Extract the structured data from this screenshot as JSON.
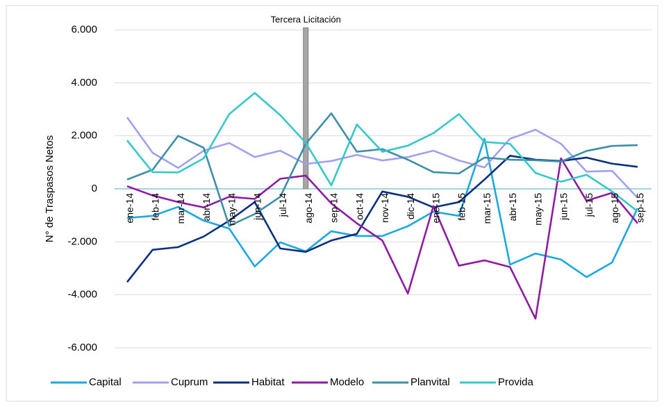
{
  "chart_data": {
    "type": "line",
    "annotation": "Tercera Licitación",
    "y_label": "N° de Traspasos Netos",
    "categories": [
      "ene-14",
      "feb-14",
      "mar-14",
      "abr-14",
      "may-14",
      "jun-14",
      "jul-14",
      "ago-14",
      "sep-14",
      "oct-14",
      "nov-14",
      "dic-14",
      "ene-15",
      "feb-15",
      "mar-15",
      "abr-15",
      "may-15",
      "jun-15",
      "jul-15",
      "ago-15",
      "sep-15"
    ],
    "series": [
      {
        "name": "Capital",
        "color": "#1ba7e0",
        "values": [
          -1100,
          -1020,
          -680,
          -1200,
          -1500,
          -2930,
          -2020,
          -2360,
          -1600,
          -1780,
          -1780,
          -1410,
          -860,
          -1020,
          1890,
          -2860,
          -2440,
          -2670,
          -3330,
          -2780,
          -730
        ]
      },
      {
        "name": "Cuprum",
        "color": "#a0a0f0",
        "values": [
          2700,
          1360,
          790,
          1440,
          1730,
          1200,
          1440,
          940,
          1050,
          1280,
          1070,
          1200,
          1440,
          1070,
          810,
          1890,
          2230,
          1700,
          650,
          680,
          -340
        ]
      },
      {
        "name": "Habitat",
        "color": "#0b2f7f",
        "values": [
          -3520,
          -2300,
          -2200,
          -1800,
          -1200,
          -500,
          -2250,
          -2380,
          -1950,
          -1700,
          -100,
          -300,
          -700,
          -500,
          350,
          1250,
          1100,
          1050,
          1180,
          950,
          830
        ]
      },
      {
        "name": "Modelo",
        "color": "#8e1aa3",
        "values": [
          100,
          -250,
          -500,
          -700,
          -300,
          -380,
          380,
          500,
          -550,
          -1300,
          -1950,
          -3950,
          -650,
          -2900,
          -2700,
          -2950,
          -4900,
          1150,
          -450,
          -150,
          -1300
        ]
      },
      {
        "name": "Planvital",
        "color": "#3d8ea6",
        "values": [
          350,
          720,
          2000,
          1550,
          -1400,
          -950,
          -300,
          1700,
          2850,
          1400,
          1500,
          1100,
          630,
          580,
          1180,
          1100,
          1080,
          1030,
          1430,
          1620,
          1650
        ]
      },
      {
        "name": "Provida",
        "color": "#36c8c8",
        "values": [
          1830,
          630,
          620,
          1150,
          2820,
          3620,
          2780,
          1740,
          130,
          2430,
          1400,
          1630,
          2100,
          2820,
          1770,
          1700,
          600,
          270,
          530,
          -100,
          -850
        ]
      }
    ],
    "ylim": [
      -6000,
      6000
    ],
    "yticks": [
      {
        "value": -6000,
        "label": "-6.000"
      },
      {
        "value": -4000,
        "label": "-4.000"
      },
      {
        "value": -2000,
        "label": "-2.000"
      },
      0,
      {
        "value": 2000,
        "label": "2.000"
      },
      {
        "value": 4000,
        "label": "4.000"
      },
      {
        "value": 6000,
        "label": "6.000"
      }
    ],
    "grid": true,
    "legend": "bottom"
  }
}
